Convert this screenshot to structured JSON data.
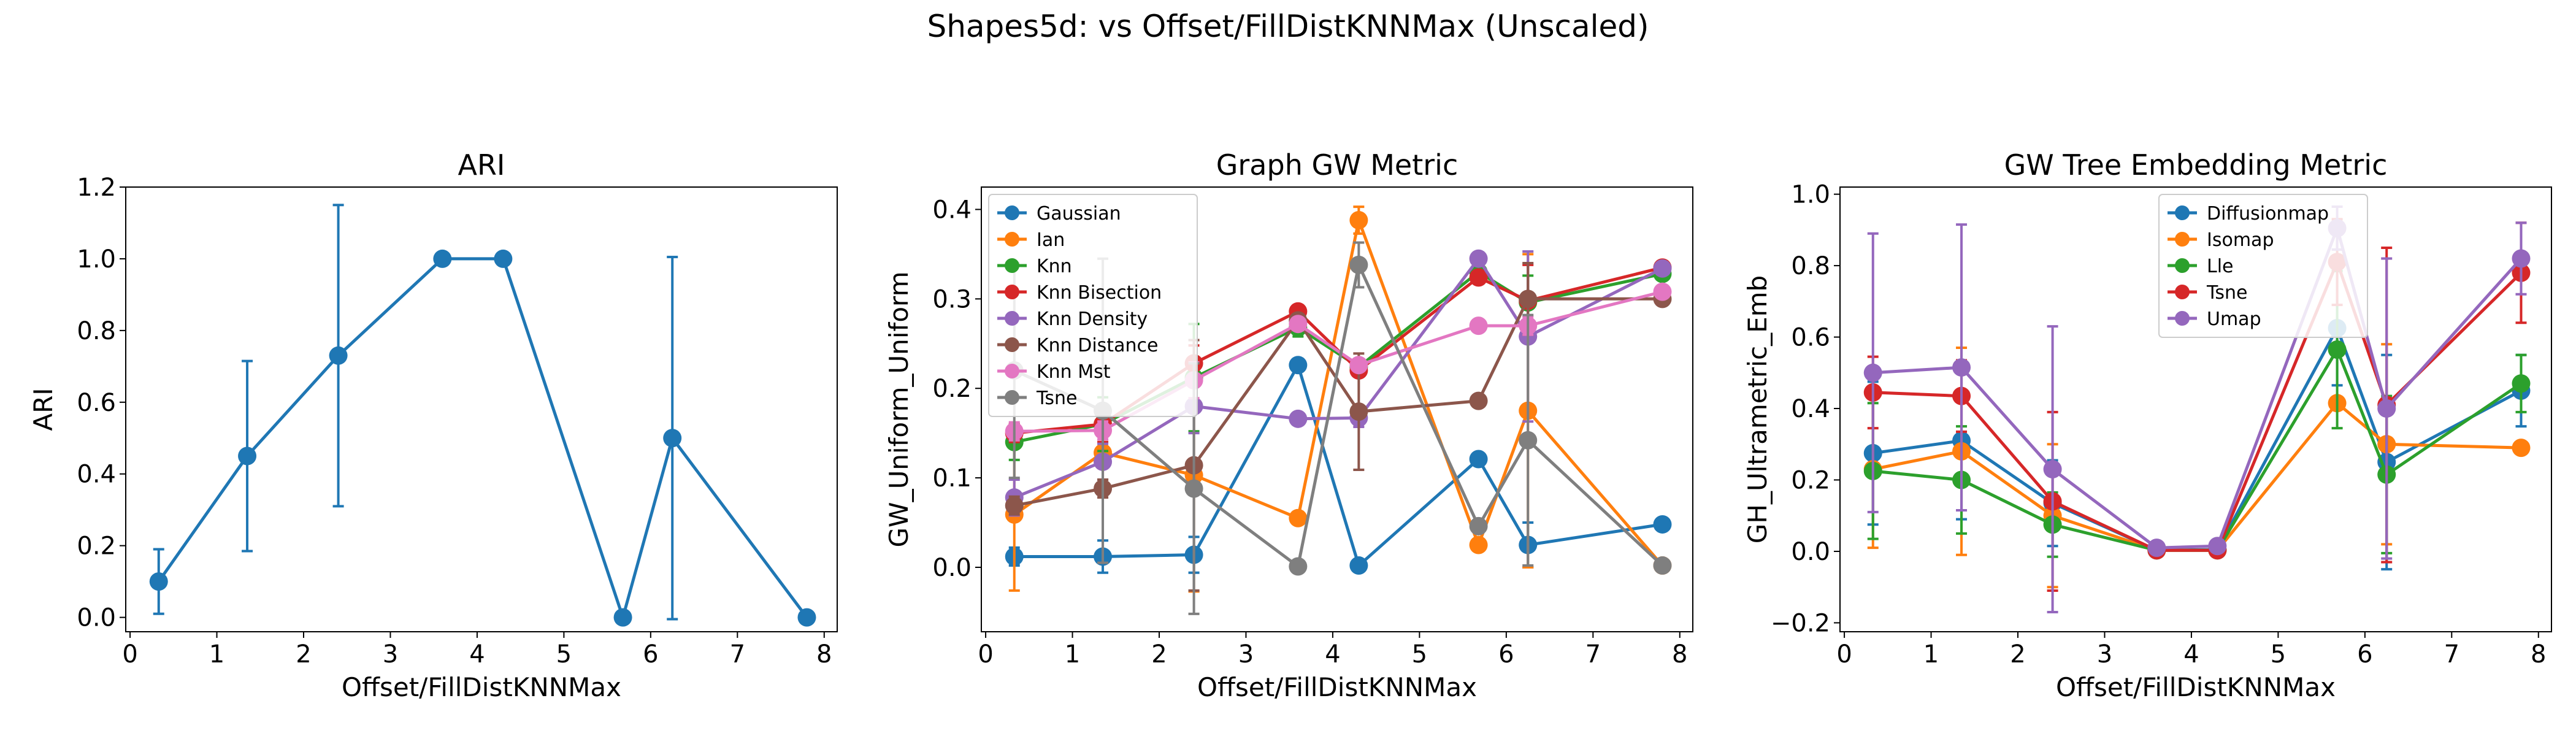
{
  "suptitle": "Shapes5d: vs Offset/FillDistKNNMax (Unscaled)",
  "chart_data": [
    {
      "type": "line",
      "title": "ARI",
      "xlabel": "Offset/FillDistKNNMax",
      "ylabel": "ARI",
      "xlim": [
        -0.05,
        8.15
      ],
      "ylim": [
        -0.04,
        1.2
      ],
      "xticks": [
        0,
        1,
        2,
        3,
        4,
        5,
        6,
        7,
        8
      ],
      "yticks": [
        0.0,
        0.2,
        0.4,
        0.6,
        0.8,
        1.0,
        1.2
      ],
      "ytick_decimals": 1,
      "grid": false,
      "legend": null,
      "x": [
        0.33,
        1.35,
        2.4,
        3.6,
        4.3,
        5.68,
        6.25,
        7.8
      ],
      "series": [
        {
          "color": "#1f77b4",
          "y": [
            0.1,
            0.45,
            0.73,
            1.0,
            1.0,
            0.0,
            0.5,
            0.0
          ],
          "err": [
            0.09,
            0.265,
            0.42,
            0,
            0,
            0,
            0.505,
            0
          ]
        }
      ]
    },
    {
      "type": "line",
      "title": "Graph GW Metric",
      "xlabel": "Offset/FillDistKNNMax",
      "ylabel": "GW_Uniform_Uniform",
      "xlim": [
        -0.05,
        8.15
      ],
      "ylim": [
        -0.072,
        0.425
      ],
      "xticks": [
        0,
        1,
        2,
        3,
        4,
        5,
        6,
        7,
        8
      ],
      "yticks": [
        0.0,
        0.1,
        0.2,
        0.3,
        0.4
      ],
      "ytick_decimals": 1,
      "grid": false,
      "legend": "upper-left",
      "x": [
        0.33,
        1.35,
        2.4,
        3.6,
        4.3,
        5.68,
        6.25,
        7.8
      ],
      "series": [
        {
          "name": "Gaussian",
          "color": "#1f77b4",
          "y": [
            0.012,
            0.012,
            0.014,
            0.226,
            0.002,
            0.121,
            0.025,
            0.048
          ],
          "err": [
            0.01,
            0.018,
            0.02,
            0.0,
            0.0,
            0.0,
            0.025,
            0.0
          ]
        },
        {
          "name": "Ian",
          "color": "#ff7f0e",
          "y": [
            0.059,
            0.128,
            0.103,
            0.055,
            0.388,
            0.025,
            0.175,
            0.002
          ],
          "err": [
            0.085,
            0.03,
            0.13,
            0.0,
            0.015,
            0.0,
            0.175,
            0.0
          ]
        },
        {
          "name": "Knn",
          "color": "#2ca02c",
          "y": [
            0.14,
            0.16,
            0.212,
            0.268,
            0.224,
            0.33,
            0.296,
            0.328
          ],
          "err": [
            0.02,
            0.03,
            0.06,
            0.01,
            0.0,
            0.0,
            0.03,
            0.0
          ]
        },
        {
          "name": "Knn Bisection",
          "color": "#d62728",
          "y": [
            0.15,
            0.16,
            0.228,
            0.286,
            0.22,
            0.324,
            0.298,
            0.335
          ],
          "err": [
            0.01,
            0.02,
            0.02,
            0.005,
            0.0,
            0.0,
            0.04,
            0.0
          ]
        },
        {
          "name": "Knn Density",
          "color": "#9467bd",
          "y": [
            0.078,
            0.118,
            0.18,
            0.166,
            0.167,
            0.345,
            0.258,
            0.334
          ],
          "err": [
            0.02,
            0.02,
            0.03,
            0.0,
            0.01,
            0.0,
            0.095,
            0.0
          ]
        },
        {
          "name": "Knn Distance",
          "color": "#8c564b",
          "y": [
            0.069,
            0.088,
            0.114,
            0.276,
            0.174,
            0.186,
            0.3,
            0.3
          ],
          "err": [
            0.01,
            0.01,
            0.14,
            0.005,
            0.065,
            0.0,
            0.04,
            0.0
          ]
        },
        {
          "name": "Knn Mst",
          "color": "#e377c2",
          "y": [
            0.152,
            0.153,
            0.209,
            0.272,
            0.226,
            0.27,
            0.27,
            0.308
          ],
          "err": [
            0.01,
            0.01,
            0.02,
            0.005,
            0.0,
            0.0,
            0.01,
            0.0
          ]
        },
        {
          "name": "Tsne",
          "color": "#7f7f7f",
          "y": [
            0.22,
            0.175,
            0.088,
            0.001,
            0.338,
            0.046,
            0.142,
            0.002
          ],
          "err": [
            0.12,
            0.17,
            0.14,
            0.0,
            0.025,
            0.0,
            0.14,
            0.0
          ]
        }
      ]
    },
    {
      "type": "line",
      "title": "GW Tree Embedding Metric",
      "xlabel": "Offset/FillDistKNNMax",
      "ylabel": "GH_Ultrametric_Emb",
      "xlim": [
        -0.05,
        8.15
      ],
      "ylim": [
        -0.225,
        1.02
      ],
      "xticks": [
        0,
        1,
        2,
        3,
        4,
        5,
        6,
        7,
        8
      ],
      "yticks": [
        -0.2,
        0.0,
        0.2,
        0.4,
        0.6,
        0.8,
        1.0
      ],
      "ytick_decimals": 1,
      "grid": false,
      "legend": "upper-center",
      "x": [
        0.33,
        1.35,
        2.4,
        3.6,
        4.3,
        5.68,
        6.25,
        7.8
      ],
      "series": [
        {
          "name": "Diffusionmap",
          "color": "#1f77b4",
          "y": [
            0.275,
            0.31,
            0.135,
            0.003,
            0.005,
            0.625,
            0.25,
            0.45
          ],
          "err": [
            0.2,
            0.22,
            0.12,
            0.0,
            0.0,
            0.16,
            0.3,
            0.1
          ]
        },
        {
          "name": "Isomap",
          "color": "#ff7f0e",
          "y": [
            0.23,
            0.28,
            0.1,
            0.003,
            0.003,
            0.415,
            0.3,
            0.29
          ],
          "err": [
            0.22,
            0.29,
            0.2,
            0.0,
            0.0,
            0.0,
            0.28,
            0.0
          ]
        },
        {
          "name": "Lle",
          "color": "#2ca02c",
          "y": [
            0.225,
            0.2,
            0.075,
            0.003,
            0.003,
            0.565,
            0.215,
            0.47
          ],
          "err": [
            0.19,
            0.15,
            0.09,
            0.0,
            0.0,
            0.22,
            0.22,
            0.08
          ]
        },
        {
          "name": "Tsne",
          "color": "#d62728",
          "y": [
            0.445,
            0.435,
            0.14,
            0.003,
            0.003,
            0.81,
            0.41,
            0.78
          ],
          "err": [
            0.1,
            0.1,
            0.25,
            0.0,
            0.0,
            0.12,
            0.44,
            0.14
          ]
        },
        {
          "name": "Umap",
          "color": "#9467bd",
          "y": [
            0.5,
            0.515,
            0.23,
            0.01,
            0.015,
            0.905,
            0.4,
            0.82
          ],
          "err": [
            0.39,
            0.4,
            0.4,
            0.0,
            0.0,
            0.06,
            0.42,
            0.1
          ]
        }
      ]
    }
  ]
}
